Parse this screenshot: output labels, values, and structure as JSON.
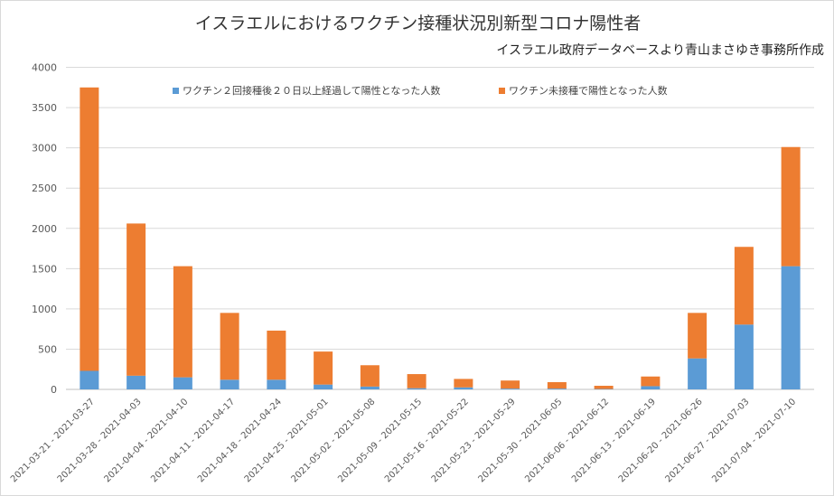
{
  "chart_data": {
    "type": "bar",
    "stacked": true,
    "title": "イスラエルにおけるワクチン接種状況別新型コロナ陽性者",
    "subtitle": "イスラエル政府データベースより青山まさゆき事務所作成",
    "xlabel": "",
    "ylabel": "",
    "ylim": [
      0,
      4000
    ],
    "yticks": [
      0,
      500,
      1000,
      1500,
      2000,
      2500,
      3000,
      3500,
      4000
    ],
    "grid": true,
    "legend_position": "top",
    "categories": [
      "2021-03-21 - 2021-03-27",
      "2021-03-28 - 2021-04-03",
      "2021-04-04 - 2021-04-10",
      "2021-04-11 - 2021-04-17",
      "2021-04-18 - 2021-04-24",
      "2021-04-25 - 2021-05-01",
      "2021-05-02 - 2021-05-08",
      "2021-05-09 - 2021-05-15",
      "2021-05-16 - 2021-05-22",
      "2021-05-23 - 2021-05-29",
      "2021-05-30 - 2021-06-05",
      "2021-06-06 - 2021-06-12",
      "2021-06-13 - 2021-06-19",
      "2021-06-20 - 2021-06-26",
      "2021-06-27 - 2021-07-03",
      "2021-07-04 - 2021-07-10"
    ],
    "series": [
      {
        "name": "ワクチン２回接種後２０日以上経過して陽性となった人数",
        "color": "#5b9bd5",
        "values": [
          230,
          170,
          150,
          120,
          120,
          60,
          35,
          15,
          25,
          10,
          10,
          5,
          40,
          385,
          805,
          1530
        ]
      },
      {
        "name": "ワクチン未接種で陽性となった人数",
        "color": "#ed7d31",
        "values": [
          3520,
          1890,
          1380,
          830,
          610,
          410,
          265,
          175,
          105,
          100,
          80,
          40,
          120,
          565,
          965,
          1480
        ]
      }
    ]
  }
}
